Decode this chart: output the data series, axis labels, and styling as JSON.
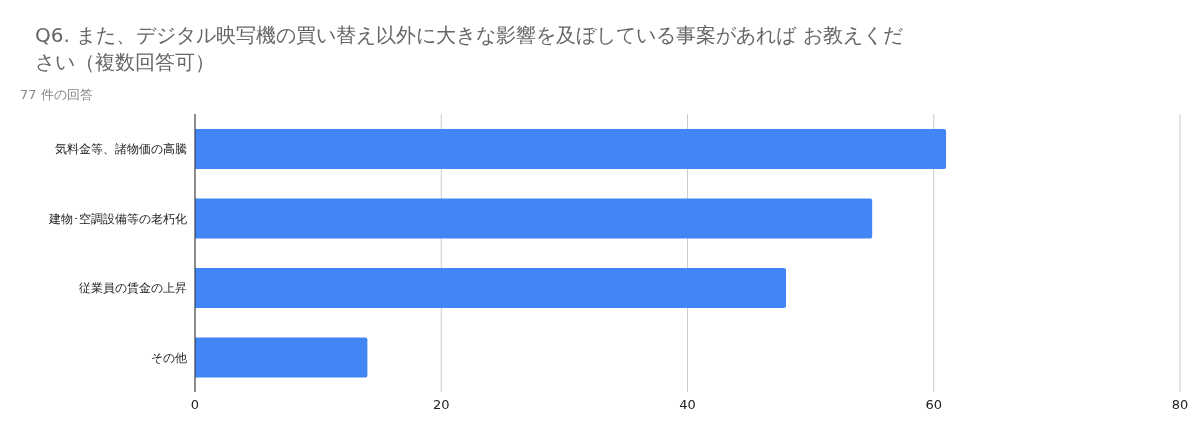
{
  "chart_data": {
    "type": "bar",
    "orientation": "horizontal",
    "title": "Q6. また、デジタル映写機の買い替え以外に大きな影響を及ぼしている事案があれば お教えください（複数回答可）",
    "subtitle": "77 件の回答",
    "categories": [
      "気料金等、諸物価の高騰",
      "建物･空調設備等の老朽化",
      "従業員の賃金の上昇",
      "その他"
    ],
    "values": [
      61,
      55,
      48,
      14
    ],
    "color": "#4285f4",
    "xlim": [
      0,
      80
    ],
    "xticks": [
      0,
      20,
      40,
      60,
      80
    ],
    "grid": "x"
  }
}
